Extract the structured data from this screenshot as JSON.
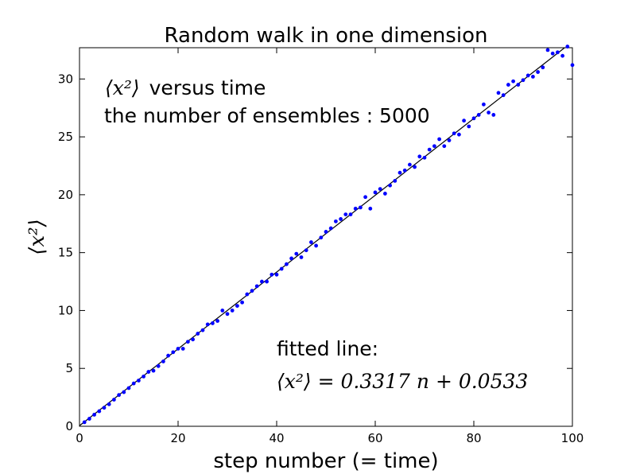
{
  "chart_data": {
    "type": "scatter",
    "title": "Random walk in one dimension",
    "xlabel": "step number (= time)",
    "ylabel": "⟨x²⟩",
    "xlim": [
      0,
      100
    ],
    "ylim": [
      0,
      32.7
    ],
    "xticks": [
      0,
      20,
      40,
      60,
      80,
      100
    ],
    "yticks": [
      0,
      5,
      10,
      15,
      20,
      25,
      30
    ],
    "grid": false,
    "annotation_top": {
      "line1_math": "⟨x²⟩",
      "line1_text": "versus time",
      "line2": "the number of ensembles : 5000"
    },
    "annotation_fit": {
      "line1": "fitted line:",
      "line2": "⟨x²⟩ = 0.3317 n + 0.0533"
    },
    "fit_line": {
      "slope": 0.3317,
      "intercept": 0.0533,
      "color": "#000000"
    },
    "points_color": "#0000ff",
    "series": [
      {
        "x": [
          1,
          2,
          3,
          4,
          5,
          6,
          7,
          8,
          9,
          10,
          11,
          12,
          13,
          14,
          15,
          16,
          17,
          18,
          19,
          20,
          21,
          22,
          23,
          24,
          25,
          26,
          27,
          28,
          29,
          30,
          31,
          32,
          33,
          34,
          35,
          36,
          37,
          38,
          39,
          40,
          41,
          42,
          43,
          44,
          45,
          46,
          47,
          48,
          49,
          50,
          51,
          52,
          53,
          54,
          55,
          56,
          57,
          58,
          59,
          60,
          61,
          62,
          63,
          64,
          65,
          66,
          67,
          68,
          69,
          70,
          71,
          72,
          73,
          74,
          75,
          76,
          77,
          78,
          79,
          80,
          81,
          82,
          83,
          84,
          85,
          86,
          87,
          88,
          89,
          90,
          91,
          92,
          93,
          94,
          95,
          96,
          97,
          98,
          99,
          100
        ],
        "y": [
          0.35,
          0.65,
          1.0,
          1.3,
          1.6,
          1.9,
          2.3,
          2.7,
          2.95,
          3.3,
          3.7,
          3.95,
          4.3,
          4.7,
          4.8,
          5.2,
          5.6,
          6.1,
          6.4,
          6.7,
          6.7,
          7.3,
          7.5,
          8.0,
          8.3,
          8.8,
          8.9,
          9.1,
          10.0,
          9.7,
          10.0,
          10.4,
          10.7,
          11.4,
          11.7,
          12.1,
          12.5,
          12.5,
          13.1,
          13.1,
          13.6,
          14.0,
          14.5,
          14.9,
          14.6,
          15.2,
          15.9,
          15.6,
          16.3,
          16.8,
          17.1,
          17.7,
          17.9,
          18.3,
          18.3,
          18.8,
          18.9,
          19.8,
          18.8,
          20.2,
          20.5,
          20.1,
          20.8,
          21.2,
          21.9,
          22.1,
          22.6,
          22.4,
          23.3,
          23.2,
          23.9,
          24.2,
          24.8,
          24.2,
          24.7,
          25.3,
          25.2,
          26.4,
          25.9,
          26.6,
          26.9,
          27.8,
          27.1,
          26.9,
          28.8,
          28.6,
          29.5,
          29.8,
          29.5,
          29.9,
          30.3,
          30.2,
          30.6,
          31.0,
          32.5,
          32.2,
          32.3,
          32.0,
          32.8,
          31.2
        ]
      }
    ]
  }
}
